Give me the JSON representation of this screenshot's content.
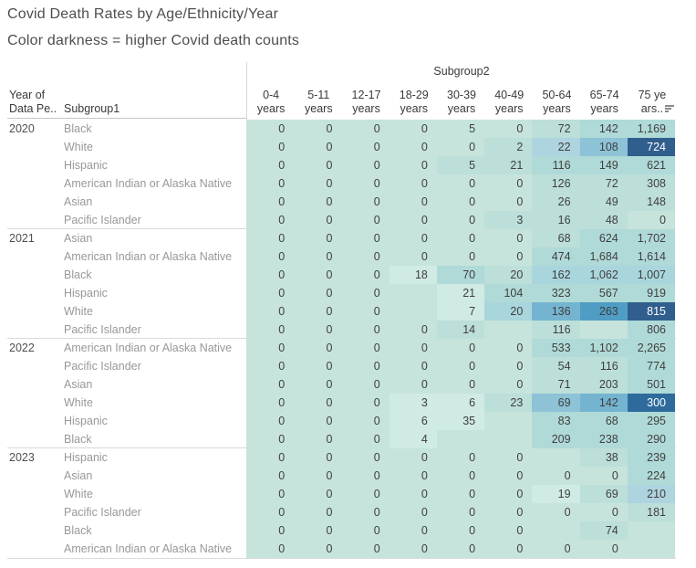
{
  "title": "Covid Death Rates by Age/Ethnicity/Year",
  "subtitle": "Color darkness = higher Covid death counts",
  "column_group_label": "Subgroup2",
  "row_group_header": {
    "line1": "Year of",
    "line2": "Data Pe.."
  },
  "row_header": "Subgroup1",
  "column_headers": [
    [
      "0-4",
      "years"
    ],
    [
      "5-11",
      "years"
    ],
    [
      "12-17",
      "years"
    ],
    [
      "18-29",
      "years"
    ],
    [
      "30-39",
      "years"
    ],
    [
      "40-49",
      "years"
    ],
    [
      "50-64",
      "years"
    ],
    [
      "65-74",
      "years"
    ],
    [
      "75 ye",
      "ars.."
    ]
  ],
  "icons": {
    "sort": "sort-descending-bars"
  },
  "palette": {
    "b": "#c6e4dc",
    "w": "#d0eae4",
    "1": "#bcdfd9",
    "2": "#b0dad7",
    "3": "#a9d6dc",
    "4": "#aed4df",
    "5": "#8dc2d7",
    "6": "#75b4d0",
    "7": "#4f9dc4",
    "8": "#2e6b9c",
    "9": "#305e8d"
  },
  "white_text_shades": [
    "8",
    "9"
  ],
  "chart_data": {
    "type": "heatmap",
    "title": "Covid Death Rates by Age/Ethnicity/Year",
    "subtitle": "Color darkness = higher Covid death counts",
    "column_group": "Subgroup2",
    "row_groups": [
      "Year of Data Pe..",
      "Subgroup1"
    ],
    "columns": [
      "0-4 years",
      "5-11 years",
      "12-17 years",
      "18-29 years",
      "30-39 years",
      "40-49 years",
      "50-64 years",
      "65-74 years",
      "75 years.."
    ],
    "rows": [
      {
        "year": "2020",
        "subgroup1": "Black",
        "values": [
          0,
          0,
          0,
          0,
          5,
          0,
          72,
          142,
          1169
        ],
        "shades": [
          "b",
          "b",
          "b",
          "b",
          "b",
          "b",
          "1",
          "2",
          "2"
        ]
      },
      {
        "year": "2020",
        "subgroup1": "White",
        "values": [
          0,
          0,
          0,
          0,
          0,
          2,
          22,
          108,
          724
        ],
        "shades": [
          "b",
          "b",
          "b",
          "b",
          "b",
          "1",
          "4",
          "5",
          "9"
        ]
      },
      {
        "year": "2020",
        "subgroup1": "Hispanic",
        "values": [
          0,
          0,
          0,
          0,
          5,
          21,
          116,
          149,
          621
        ],
        "shades": [
          "b",
          "b",
          "b",
          "b",
          "1",
          "1",
          "2",
          "2",
          "2"
        ]
      },
      {
        "year": "2020",
        "subgroup1": "American Indian or Alaska Native",
        "values": [
          0,
          0,
          0,
          0,
          0,
          0,
          126,
          72,
          308
        ],
        "shades": [
          "b",
          "b",
          "b",
          "b",
          "b",
          "b",
          "1",
          "1",
          "1"
        ]
      },
      {
        "year": "2020",
        "subgroup1": "Asian",
        "values": [
          0,
          0,
          0,
          0,
          0,
          0,
          26,
          49,
          148
        ],
        "shades": [
          "b",
          "b",
          "b",
          "b",
          "b",
          "b",
          "1",
          "1",
          "1"
        ]
      },
      {
        "year": "2020",
        "subgroup1": "Pacific Islander",
        "values": [
          0,
          0,
          0,
          0,
          0,
          3,
          16,
          48,
          0
        ],
        "shades": [
          "b",
          "b",
          "b",
          "b",
          "b",
          "1",
          "1",
          "1",
          "b"
        ]
      },
      {
        "year": "2021",
        "subgroup1": "Asian",
        "values": [
          0,
          0,
          0,
          0,
          0,
          0,
          68,
          624,
          1702
        ],
        "shades": [
          "b",
          "b",
          "b",
          "b",
          "b",
          "b",
          "1",
          "2",
          "2"
        ]
      },
      {
        "year": "2021",
        "subgroup1": "American Indian or Alaska Native",
        "values": [
          0,
          0,
          0,
          0,
          0,
          0,
          474,
          1684,
          1614
        ],
        "shades": [
          "b",
          "b",
          "b",
          "b",
          "b",
          "b",
          "2",
          "2",
          "2"
        ]
      },
      {
        "year": "2021",
        "subgroup1": "Black",
        "values": [
          0,
          0,
          0,
          18,
          70,
          20,
          162,
          1062,
          1007
        ],
        "shades": [
          "b",
          "b",
          "b",
          "w",
          "2",
          "1",
          "3",
          "3",
          "3"
        ]
      },
      {
        "year": "2021",
        "subgroup1": "Hispanic",
        "values": [
          0,
          0,
          0,
          null,
          21,
          104,
          323,
          567,
          919
        ],
        "shades": [
          "b",
          "b",
          "b",
          "b",
          "w",
          "2",
          "2",
          "2",
          "2"
        ]
      },
      {
        "year": "2021",
        "subgroup1": "White",
        "values": [
          0,
          0,
          0,
          null,
          7,
          20,
          136,
          263,
          815
        ],
        "shades": [
          "b",
          "b",
          "b",
          "b",
          "w",
          "3",
          "6",
          "7",
          "9"
        ]
      },
      {
        "year": "2021",
        "subgroup1": "Pacific Islander",
        "values": [
          0,
          0,
          0,
          0,
          14,
          null,
          116,
          null,
          806
        ],
        "shades": [
          "b",
          "b",
          "b",
          "b",
          "1",
          "b",
          "1",
          "b",
          "2"
        ]
      },
      {
        "year": "2022",
        "subgroup1": "American Indian or Alaska Native",
        "values": [
          0,
          0,
          0,
          0,
          0,
          0,
          533,
          1102,
          2265
        ],
        "shades": [
          "b",
          "b",
          "b",
          "b",
          "b",
          "b",
          "2",
          "2",
          "2"
        ]
      },
      {
        "year": "2022",
        "subgroup1": "Pacific Islander",
        "values": [
          0,
          0,
          0,
          0,
          0,
          0,
          54,
          116,
          774
        ],
        "shades": [
          "b",
          "b",
          "b",
          "b",
          "b",
          "b",
          "1",
          "1",
          "2"
        ]
      },
      {
        "year": "2022",
        "subgroup1": "Asian",
        "values": [
          0,
          0,
          0,
          0,
          0,
          0,
          71,
          203,
          501
        ],
        "shades": [
          "b",
          "b",
          "b",
          "b",
          "b",
          "b",
          "1",
          "1",
          "2"
        ]
      },
      {
        "year": "2022",
        "subgroup1": "White",
        "values": [
          0,
          0,
          0,
          3,
          6,
          23,
          69,
          142,
          300
        ],
        "shades": [
          "b",
          "b",
          "b",
          "w",
          "w",
          "1",
          "5",
          "6",
          "8"
        ]
      },
      {
        "year": "2022",
        "subgroup1": "Hispanic",
        "values": [
          0,
          0,
          0,
          6,
          35,
          null,
          83,
          68,
          295
        ],
        "shades": [
          "b",
          "b",
          "b",
          "w",
          "w",
          "b",
          "2",
          "2",
          "2"
        ]
      },
      {
        "year": "2022",
        "subgroup1": "Black",
        "values": [
          0,
          0,
          0,
          4,
          null,
          null,
          209,
          238,
          290
        ],
        "shades": [
          "b",
          "b",
          "b",
          "w",
          "b",
          "b",
          "2",
          "2",
          "2"
        ]
      },
      {
        "year": "2023",
        "subgroup1": "Hispanic",
        "values": [
          0,
          0,
          0,
          0,
          0,
          0,
          null,
          38,
          239
        ],
        "shades": [
          "b",
          "b",
          "b",
          "b",
          "b",
          "b",
          "b",
          "1",
          "2"
        ]
      },
      {
        "year": "2023",
        "subgroup1": "Asian",
        "values": [
          0,
          0,
          0,
          0,
          0,
          0,
          0,
          0,
          224
        ],
        "shades": [
          "b",
          "b",
          "b",
          "b",
          "b",
          "b",
          "b",
          "b",
          "2"
        ]
      },
      {
        "year": "2023",
        "subgroup1": "White",
        "values": [
          0,
          0,
          0,
          0,
          0,
          0,
          19,
          69,
          210
        ],
        "shades": [
          "b",
          "b",
          "b",
          "b",
          "b",
          "b",
          "w",
          "1",
          "4"
        ]
      },
      {
        "year": "2023",
        "subgroup1": "Pacific Islander",
        "values": [
          0,
          0,
          0,
          0,
          0,
          0,
          0,
          0,
          181
        ],
        "shades": [
          "b",
          "b",
          "b",
          "b",
          "b",
          "b",
          "b",
          "b",
          "1"
        ]
      },
      {
        "year": "2023",
        "subgroup1": "Black",
        "values": [
          0,
          0,
          0,
          0,
          0,
          0,
          null,
          74,
          null
        ],
        "shades": [
          "b",
          "b",
          "b",
          "b",
          "b",
          "b",
          "b",
          "1",
          "b"
        ]
      },
      {
        "year": "2023",
        "subgroup1": "American Indian or Alaska Native",
        "values": [
          0,
          0,
          0,
          0,
          0,
          0,
          0,
          0,
          null
        ],
        "shades": [
          "b",
          "b",
          "b",
          "b",
          "b",
          "b",
          "b",
          "b",
          "b"
        ]
      }
    ]
  }
}
